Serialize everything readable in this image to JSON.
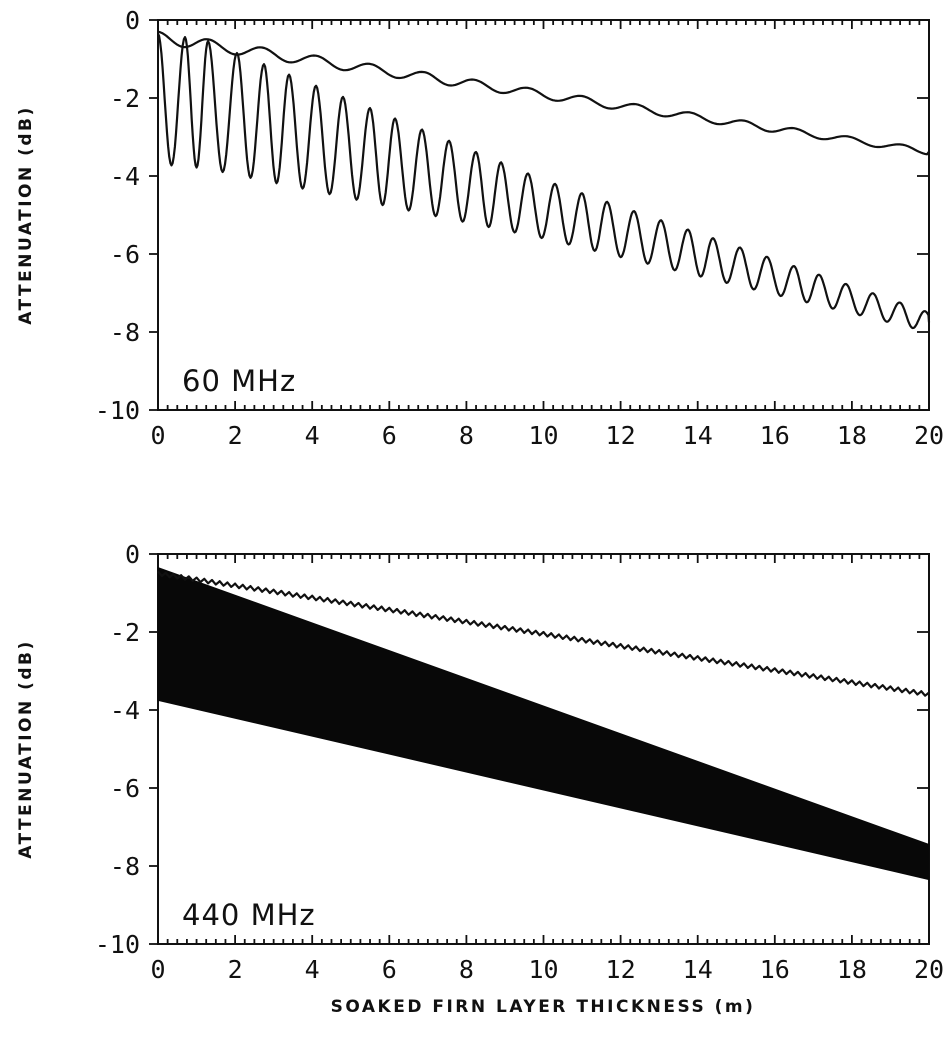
{
  "chart_data": [
    {
      "type": "line",
      "panel_label": "60 MHz",
      "xlabel": "",
      "ylabel": "ATTENUATION (dB)",
      "xlim": [
        0,
        20
      ],
      "ylim": [
        -10,
        0
      ],
      "xticks": [
        "0",
        "2",
        "4",
        "6",
        "8",
        "10",
        "12",
        "14",
        "16",
        "18",
        "20"
      ],
      "yticks": [
        "0",
        "-2",
        "-4",
        "-6",
        "-8",
        "-10"
      ],
      "grid": false,
      "series": [
        {
          "style": "oscillating",
          "x_range": [
            0,
            20
          ],
          "upper_envelope": [
            [
              0,
              -0.35
            ],
            [
              1.2,
              -0.5
            ],
            [
              10,
              -4.1
            ],
            [
              20,
              -7.5
            ]
          ],
          "lower_envelope": [
            [
              0,
              -3.7
            ],
            [
              1.2,
              -3.8
            ],
            [
              10,
              -5.6
            ],
            [
              20,
              -8.0
            ]
          ],
          "peaks_x": [
            0.0,
            0.7,
            1.3,
            2.05,
            2.75,
            3.4,
            4.1,
            4.8,
            5.5,
            6.15,
            6.85,
            7.55,
            8.25,
            8.9,
            9.6,
            10.3,
            11.0,
            11.65,
            12.35,
            13.05,
            13.75,
            14.4,
            15.1,
            15.8,
            16.5,
            17.15,
            17.85,
            18.55,
            19.25,
            19.9
          ]
        },
        {
          "style": "oscillating",
          "x_range": [
            0,
            20
          ],
          "upper_envelope": [
            [
              0,
              -0.3
            ],
            [
              20,
              -3.3
            ]
          ],
          "lower_envelope": [
            [
              0,
              -0.6
            ],
            [
              20,
              -3.45
            ]
          ],
          "peaks_x": [
            0.0,
            1.3,
            2.7,
            4.1,
            5.5,
            6.9,
            8.2,
            9.6,
            11.0,
            12.4,
            13.8,
            15.2,
            16.5,
            17.9,
            19.3
          ]
        }
      ]
    },
    {
      "type": "line",
      "panel_label": "440 MHz",
      "xlabel": "SOAKED FIRN LAYER THICKNESS (m)",
      "ylabel": "ATTENUATION (dB)",
      "xlim": [
        0,
        20
      ],
      "ylim": [
        -10,
        0
      ],
      "xticks": [
        "0",
        "2",
        "4",
        "6",
        "8",
        "10",
        "12",
        "14",
        "16",
        "18",
        "20"
      ],
      "yticks": [
        "0",
        "-2",
        "-4",
        "-6",
        "-8",
        "-10"
      ],
      "grid": false,
      "series": [
        {
          "style": "dense-oscillation-band",
          "x_range": [
            0,
            20
          ],
          "upper_envelope": [
            [
              0,
              -0.35
            ],
            [
              20,
              -7.45
            ]
          ],
          "lower_envelope": [
            [
              0,
              -3.75
            ],
            [
              20,
              -8.35
            ]
          ]
        },
        {
          "style": "fine-oscillation",
          "x_range": [
            0,
            20
          ],
          "upper_envelope": [
            [
              0,
              -0.45
            ],
            [
              20,
              -3.55
            ]
          ],
          "lower_envelope": [
            [
              0,
              -0.55
            ],
            [
              20,
              -3.65
            ]
          ]
        }
      ]
    }
  ]
}
